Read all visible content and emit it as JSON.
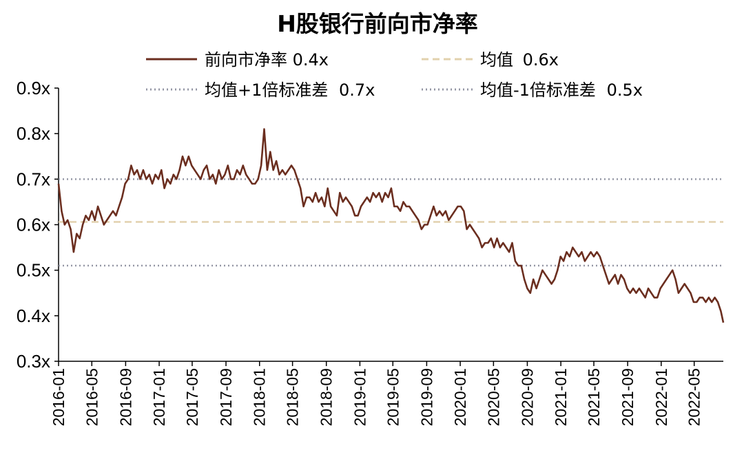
{
  "chart_data": {
    "type": "line",
    "title": "H股银行前向市净率",
    "xlabel": "",
    "ylabel": "",
    "ylim": [
      0.3,
      0.9
    ],
    "yticks": [
      "0.3x",
      "0.4x",
      "0.5x",
      "0.6x",
      "0.7x",
      "0.8x",
      "0.9x"
    ],
    "x_ticks": [
      "2016-01",
      "2016-05",
      "2016-09",
      "2017-01",
      "2017-05",
      "2017-09",
      "2018-01",
      "2018-05",
      "2018-09",
      "2019-01",
      "2019-05",
      "2019-09",
      "2020-01",
      "2020-05",
      "2020-09",
      "2021-01",
      "2021-05",
      "2021-09",
      "2022-01",
      "2022-05"
    ],
    "x_range": [
      "2016-01-01",
      "2022-08-15"
    ],
    "legend": [
      {
        "label": "前向市净率",
        "value": "0.4x",
        "style": "solid",
        "color": "#6b2e1f"
      },
      {
        "label": "均值",
        "value": "0.6x",
        "style": "dashed",
        "color": "#e2d1ad"
      },
      {
        "label": "均值+1倍标准差",
        "value": "0.7x",
        "style": "dotted",
        "color": "#9396a4"
      },
      {
        "label": "均值-1倍标准差",
        "value": "0.5x",
        "style": "dotted",
        "color": "#9396a4"
      }
    ],
    "reference_lines": [
      {
        "name": "均值",
        "value": 0.606
      },
      {
        "name": "均值+1倍标准差",
        "value": 0.7
      },
      {
        "name": "均值-1倍标准差",
        "value": 0.51
      }
    ],
    "series": [
      {
        "name": "前向市净率",
        "points": [
          [
            "2016-01-01",
            0.69
          ],
          [
            "2016-01-12",
            0.63
          ],
          [
            "2016-01-23",
            0.6
          ],
          [
            "2016-02-03",
            0.61
          ],
          [
            "2016-02-14",
            0.59
          ],
          [
            "2016-02-25",
            0.54
          ],
          [
            "2016-03-07",
            0.58
          ],
          [
            "2016-03-18",
            0.57
          ],
          [
            "2016-03-29",
            0.6
          ],
          [
            "2016-04-09",
            0.62
          ],
          [
            "2016-04-20",
            0.61
          ],
          [
            "2016-05-01",
            0.63
          ],
          [
            "2016-05-12",
            0.61
          ],
          [
            "2016-05-23",
            0.64
          ],
          [
            "2016-06-03",
            0.62
          ],
          [
            "2016-06-14",
            0.6
          ],
          [
            "2016-06-25",
            0.61
          ],
          [
            "2016-07-06",
            0.62
          ],
          [
            "2016-07-17",
            0.63
          ],
          [
            "2016-07-28",
            0.62
          ],
          [
            "2016-08-08",
            0.64
          ],
          [
            "2016-08-19",
            0.66
          ],
          [
            "2016-08-30",
            0.69
          ],
          [
            "2016-09-10",
            0.7
          ],
          [
            "2016-09-21",
            0.73
          ],
          [
            "2016-10-02",
            0.71
          ],
          [
            "2016-10-13",
            0.72
          ],
          [
            "2016-10-24",
            0.7
          ],
          [
            "2016-11-04",
            0.72
          ],
          [
            "2016-11-15",
            0.7
          ],
          [
            "2016-11-26",
            0.71
          ],
          [
            "2016-12-07",
            0.69
          ],
          [
            "2016-12-18",
            0.71
          ],
          [
            "2016-12-29",
            0.7
          ],
          [
            "2017-01-09",
            0.72
          ],
          [
            "2017-01-20",
            0.68
          ],
          [
            "2017-01-31",
            0.7
          ],
          [
            "2017-02-11",
            0.69
          ],
          [
            "2017-02-22",
            0.71
          ],
          [
            "2017-03-05",
            0.7
          ],
          [
            "2017-03-16",
            0.72
          ],
          [
            "2017-03-27",
            0.75
          ],
          [
            "2017-04-07",
            0.73
          ],
          [
            "2017-04-18",
            0.75
          ],
          [
            "2017-04-29",
            0.73
          ],
          [
            "2017-05-10",
            0.72
          ],
          [
            "2017-05-21",
            0.71
          ],
          [
            "2017-06-01",
            0.7
          ],
          [
            "2017-06-12",
            0.72
          ],
          [
            "2017-06-23",
            0.73
          ],
          [
            "2017-07-04",
            0.7
          ],
          [
            "2017-07-15",
            0.71
          ],
          [
            "2017-07-26",
            0.69
          ],
          [
            "2017-08-06",
            0.72
          ],
          [
            "2017-08-17",
            0.7
          ],
          [
            "2017-08-28",
            0.71
          ],
          [
            "2017-09-08",
            0.73
          ],
          [
            "2017-09-19",
            0.7
          ],
          [
            "2017-09-30",
            0.7
          ],
          [
            "2017-10-11",
            0.72
          ],
          [
            "2017-10-22",
            0.71
          ],
          [
            "2017-11-02",
            0.73
          ],
          [
            "2017-11-13",
            0.71
          ],
          [
            "2017-11-24",
            0.7
          ],
          [
            "2017-12-05",
            0.69
          ],
          [
            "2017-12-16",
            0.69
          ],
          [
            "2017-12-27",
            0.7
          ],
          [
            "2018-01-07",
            0.73
          ],
          [
            "2018-01-18",
            0.81
          ],
          [
            "2018-01-29",
            0.72
          ],
          [
            "2018-02-09",
            0.76
          ],
          [
            "2018-02-20",
            0.72
          ],
          [
            "2018-03-03",
            0.74
          ],
          [
            "2018-03-14",
            0.71
          ],
          [
            "2018-03-25",
            0.72
          ],
          [
            "2018-04-05",
            0.71
          ],
          [
            "2018-04-16",
            0.72
          ],
          [
            "2018-04-27",
            0.73
          ],
          [
            "2018-05-08",
            0.72
          ],
          [
            "2018-05-19",
            0.7
          ],
          [
            "2018-05-30",
            0.68
          ],
          [
            "2018-06-10",
            0.64
          ],
          [
            "2018-06-21",
            0.66
          ],
          [
            "2018-07-02",
            0.66
          ],
          [
            "2018-07-13",
            0.65
          ],
          [
            "2018-07-24",
            0.67
          ],
          [
            "2018-08-04",
            0.65
          ],
          [
            "2018-08-15",
            0.66
          ],
          [
            "2018-08-26",
            0.64
          ],
          [
            "2018-09-06",
            0.68
          ],
          [
            "2018-09-17",
            0.64
          ],
          [
            "2018-09-28",
            0.63
          ],
          [
            "2018-10-09",
            0.62
          ],
          [
            "2018-10-20",
            0.67
          ],
          [
            "2018-10-31",
            0.65
          ],
          [
            "2018-11-11",
            0.66
          ],
          [
            "2018-11-22",
            0.65
          ],
          [
            "2018-12-03",
            0.64
          ],
          [
            "2018-12-14",
            0.62
          ],
          [
            "2018-12-25",
            0.62
          ],
          [
            "2019-01-05",
            0.64
          ],
          [
            "2019-01-16",
            0.65
          ],
          [
            "2019-01-27",
            0.66
          ],
          [
            "2019-02-07",
            0.65
          ],
          [
            "2019-02-18",
            0.67
          ],
          [
            "2019-03-01",
            0.66
          ],
          [
            "2019-03-12",
            0.67
          ],
          [
            "2019-03-23",
            0.65
          ],
          [
            "2019-04-03",
            0.67
          ],
          [
            "2019-04-14",
            0.66
          ],
          [
            "2019-04-25",
            0.68
          ],
          [
            "2019-05-06",
            0.64
          ],
          [
            "2019-05-17",
            0.64
          ],
          [
            "2019-05-28",
            0.63
          ],
          [
            "2019-06-08",
            0.65
          ],
          [
            "2019-06-19",
            0.64
          ],
          [
            "2019-06-30",
            0.64
          ],
          [
            "2019-07-11",
            0.63
          ],
          [
            "2019-07-22",
            0.62
          ],
          [
            "2019-08-02",
            0.61
          ],
          [
            "2019-08-13",
            0.59
          ],
          [
            "2019-08-24",
            0.6
          ],
          [
            "2019-09-04",
            0.6
          ],
          [
            "2019-09-15",
            0.62
          ],
          [
            "2019-09-26",
            0.64
          ],
          [
            "2019-10-07",
            0.62
          ],
          [
            "2019-10-18",
            0.63
          ],
          [
            "2019-10-29",
            0.62
          ],
          [
            "2019-11-09",
            0.63
          ],
          [
            "2019-11-20",
            0.61
          ],
          [
            "2019-12-01",
            0.62
          ],
          [
            "2019-12-12",
            0.63
          ],
          [
            "2019-12-23",
            0.64
          ],
          [
            "2020-01-03",
            0.64
          ],
          [
            "2020-01-14",
            0.63
          ],
          [
            "2020-01-25",
            0.59
          ],
          [
            "2020-02-05",
            0.6
          ],
          [
            "2020-02-16",
            0.59
          ],
          [
            "2020-02-27",
            0.58
          ],
          [
            "2020-03-09",
            0.57
          ],
          [
            "2020-03-20",
            0.55
          ],
          [
            "2020-03-31",
            0.56
          ],
          [
            "2020-04-11",
            0.56
          ],
          [
            "2020-04-22",
            0.57
          ],
          [
            "2020-05-03",
            0.55
          ],
          [
            "2020-05-14",
            0.57
          ],
          [
            "2020-05-25",
            0.55
          ],
          [
            "2020-06-05",
            0.56
          ],
          [
            "2020-06-16",
            0.55
          ],
          [
            "2020-06-27",
            0.54
          ],
          [
            "2020-07-08",
            0.56
          ],
          [
            "2020-07-19",
            0.52
          ],
          [
            "2020-07-30",
            0.51
          ],
          [
            "2020-08-10",
            0.51
          ],
          [
            "2020-08-21",
            0.48
          ],
          [
            "2020-09-01",
            0.46
          ],
          [
            "2020-09-12",
            0.45
          ],
          [
            "2020-09-23",
            0.48
          ],
          [
            "2020-10-04",
            0.46
          ],
          [
            "2020-10-15",
            0.48
          ],
          [
            "2020-10-26",
            0.5
          ],
          [
            "2020-11-06",
            0.49
          ],
          [
            "2020-11-17",
            0.48
          ],
          [
            "2020-11-28",
            0.47
          ],
          [
            "2020-12-09",
            0.48
          ],
          [
            "2020-12-20",
            0.5
          ],
          [
            "2020-12-31",
            0.53
          ],
          [
            "2021-01-11",
            0.52
          ],
          [
            "2021-01-22",
            0.54
          ],
          [
            "2021-02-02",
            0.53
          ],
          [
            "2021-02-13",
            0.55
          ],
          [
            "2021-02-24",
            0.54
          ],
          [
            "2021-03-07",
            0.53
          ],
          [
            "2021-03-18",
            0.54
          ],
          [
            "2021-03-29",
            0.52
          ],
          [
            "2021-04-09",
            0.53
          ],
          [
            "2021-04-20",
            0.54
          ],
          [
            "2021-05-01",
            0.53
          ],
          [
            "2021-05-12",
            0.54
          ],
          [
            "2021-05-23",
            0.53
          ],
          [
            "2021-06-03",
            0.51
          ],
          [
            "2021-06-14",
            0.49
          ],
          [
            "2021-06-25",
            0.47
          ],
          [
            "2021-07-06",
            0.48
          ],
          [
            "2021-07-17",
            0.49
          ],
          [
            "2021-07-28",
            0.47
          ],
          [
            "2021-08-08",
            0.49
          ],
          [
            "2021-08-19",
            0.48
          ],
          [
            "2021-08-30",
            0.46
          ],
          [
            "2021-09-10",
            0.45
          ],
          [
            "2021-09-21",
            0.46
          ],
          [
            "2021-10-02",
            0.45
          ],
          [
            "2021-10-13",
            0.46
          ],
          [
            "2021-10-24",
            0.45
          ],
          [
            "2021-11-04",
            0.44
          ],
          [
            "2021-11-15",
            0.46
          ],
          [
            "2021-11-26",
            0.45
          ],
          [
            "2021-12-07",
            0.44
          ],
          [
            "2021-12-18",
            0.44
          ],
          [
            "2021-12-29",
            0.46
          ],
          [
            "2022-01-09",
            0.47
          ],
          [
            "2022-01-20",
            0.48
          ],
          [
            "2022-01-31",
            0.49
          ],
          [
            "2022-02-11",
            0.5
          ],
          [
            "2022-02-22",
            0.48
          ],
          [
            "2022-03-05",
            0.45
          ],
          [
            "2022-03-16",
            0.46
          ],
          [
            "2022-03-27",
            0.47
          ],
          [
            "2022-04-07",
            0.46
          ],
          [
            "2022-04-18",
            0.45
          ],
          [
            "2022-04-29",
            0.43
          ],
          [
            "2022-05-10",
            0.43
          ],
          [
            "2022-05-21",
            0.44
          ],
          [
            "2022-06-01",
            0.44
          ],
          [
            "2022-06-12",
            0.43
          ],
          [
            "2022-06-23",
            0.44
          ],
          [
            "2022-07-04",
            0.43
          ],
          [
            "2022-07-15",
            0.44
          ],
          [
            "2022-07-26",
            0.43
          ],
          [
            "2022-08-06",
            0.41
          ],
          [
            "2022-08-15",
            0.385
          ]
        ]
      }
    ]
  }
}
